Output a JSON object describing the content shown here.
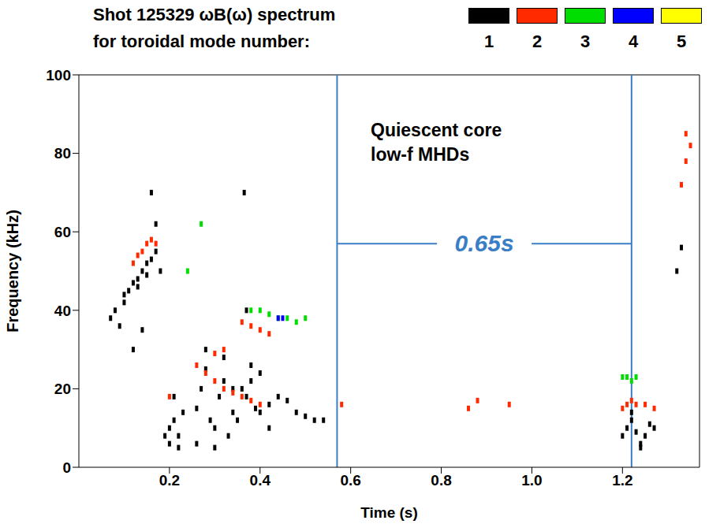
{
  "chart_data": {
    "type": "scatter",
    "title": "Shot 125329 ωB(ω) spectrum",
    "subtitle": "for toroidal mode number:",
    "x_label": "Time (s)",
    "y_label": "Frequency (kHz)",
    "xlim": [
      0,
      1.37
    ],
    "ylim": [
      0,
      100
    ],
    "xticks": [
      0.2,
      0.4,
      0.6,
      0.8,
      1.0,
      1.2
    ],
    "yticks": [
      0,
      20,
      40,
      60,
      80,
      100
    ],
    "legend": "top",
    "marker": "square",
    "series": [
      {
        "name": "1",
        "color": "#000000",
        "x": [
          0.07,
          0.08,
          0.09,
          0.1,
          0.11,
          0.12,
          0.13,
          0.14,
          0.15,
          0.16,
          0.17,
          0.18,
          0.12,
          0.14,
          0.16,
          0.17,
          0.1,
          0.13,
          0.15,
          0.19,
          0.2,
          0.21,
          0.22,
          0.23,
          0.2,
          0.21,
          0.22,
          0.26,
          0.27,
          0.28,
          0.29,
          0.3,
          0.31,
          0.32,
          0.33,
          0.34,
          0.35,
          0.26,
          0.28,
          0.3,
          0.32,
          0.34,
          0.36,
          0.37,
          0.38,
          0.39,
          0.4,
          0.42,
          0.44,
          0.46,
          0.48,
          0.5,
          0.52,
          0.54,
          0.38,
          0.4,
          0.42,
          0.37,
          0.365,
          1.2,
          1.21,
          1.22,
          1.23,
          1.24,
          1.25,
          1.26,
          1.27,
          1.22,
          1.24,
          1.32,
          1.33
        ],
        "values": [
          38,
          40,
          36,
          42,
          45,
          47,
          48,
          50,
          52,
          53,
          55,
          50,
          30,
          35,
          70,
          62,
          44,
          46,
          49,
          8,
          10,
          12,
          8,
          14,
          6,
          18,
          5,
          15,
          20,
          25,
          12,
          10,
          18,
          22,
          8,
          14,
          12,
          6,
          30,
          5,
          28,
          20,
          20,
          18,
          22,
          15,
          14,
          16,
          18,
          17,
          14,
          13,
          12,
          12,
          26,
          24,
          10,
          40,
          70,
          8,
          10,
          12,
          9,
          6,
          8,
          11,
          10,
          14,
          5,
          50,
          56
        ]
      },
      {
        "name": "2",
        "color": "#ff2a00",
        "x": [
          0.12,
          0.13,
          0.14,
          0.15,
          0.16,
          0.17,
          0.2,
          0.26,
          0.28,
          0.3,
          0.32,
          0.34,
          0.36,
          0.38,
          0.4,
          0.3,
          0.32,
          0.36,
          0.38,
          0.4,
          0.42,
          0.58,
          0.86,
          0.88,
          0.95,
          1.2,
          1.21,
          1.22,
          1.23,
          1.25,
          1.27,
          1.33,
          1.34,
          1.35,
          1.34
        ],
        "values": [
          52,
          54,
          55,
          57,
          58,
          57,
          18,
          26,
          24,
          22,
          20,
          19,
          18,
          17,
          16,
          29,
          30,
          37,
          36,
          35,
          34,
          16,
          15,
          17,
          16,
          15,
          16,
          17,
          16,
          16,
          15,
          72,
          78,
          82,
          85
        ]
      },
      {
        "name": "3",
        "color": "#00dd00",
        "x": [
          0.38,
          0.4,
          0.42,
          0.44,
          0.46,
          0.48,
          0.5,
          0.27,
          0.24,
          1.2,
          1.21,
          1.22,
          1.23
        ],
        "values": [
          40,
          40,
          39,
          38,
          38,
          37,
          38,
          62,
          50,
          23,
          23,
          22,
          23
        ]
      },
      {
        "name": "4",
        "color": "#0000ff",
        "x": [
          0.44,
          0.45
        ],
        "values": [
          38,
          38
        ]
      },
      {
        "name": "5",
        "color": "#ffff00",
        "x": [],
        "values": []
      }
    ],
    "annotations": [
      {
        "text": "Quiescent core low-f MHDs"
      },
      {
        "text": "0.65s",
        "x": [
          0.57,
          1.22
        ],
        "y": 57
      }
    ]
  }
}
